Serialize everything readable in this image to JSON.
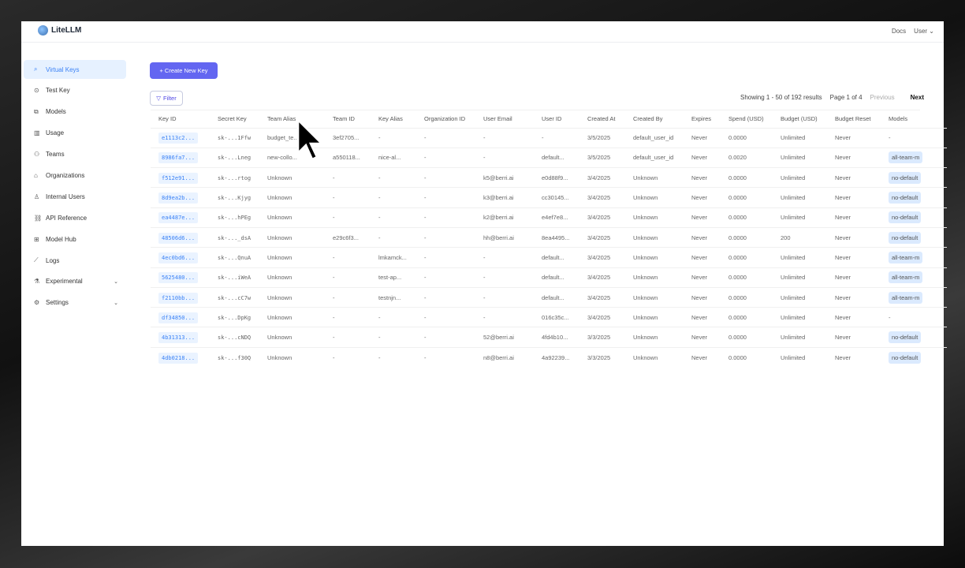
{
  "app": {
    "title": "LiteLLM",
    "docs": "Docs",
    "user": "User"
  },
  "sidebar": {
    "items": [
      {
        "label": "Virtual Keys",
        "icon": "key-search-icon",
        "active": true
      },
      {
        "label": "Test Key",
        "icon": "play-circle-icon"
      },
      {
        "label": "Models",
        "icon": "models-icon"
      },
      {
        "label": "Usage",
        "icon": "bar-chart-icon"
      },
      {
        "label": "Teams",
        "icon": "team-icon"
      },
      {
        "label": "Organizations",
        "icon": "bank-icon"
      },
      {
        "label": "Internal Users",
        "icon": "user-icon"
      },
      {
        "label": "API Reference",
        "icon": "link-icon"
      },
      {
        "label": "Model Hub",
        "icon": "grid-icon"
      },
      {
        "label": "Logs",
        "icon": "line-chart-icon"
      },
      {
        "label": "Experimental",
        "icon": "flask-icon",
        "expandable": true
      },
      {
        "label": "Settings",
        "icon": "gear-icon",
        "expandable": true
      }
    ]
  },
  "toolbar": {
    "create_label": "+ Create New Key",
    "filter_label": "Filter"
  },
  "pagination": {
    "showing": "Showing 1 - 50 of 192 results",
    "page": "Page 1 of 4",
    "previous": "Previous",
    "next": "Next"
  },
  "table": {
    "columns": [
      "Key ID",
      "Secret Key",
      "Team Alias",
      "Team ID",
      "Key Alias",
      "Organization ID",
      "User Email",
      "User ID",
      "Created At",
      "Created By",
      "Expires",
      "Spend (USD)",
      "Budget (USD)",
      "Budget Reset",
      "Models"
    ],
    "rows": [
      [
        "e1113c2...",
        "sk-...1Ffw",
        "budget_te...",
        "3ef2705...",
        "-",
        "-",
        "-",
        "-",
        "3/5/2025",
        "default_user_id",
        "Never",
        "0.0000",
        "Unlimited",
        "Never",
        "-"
      ],
      [
        "8986fa7...",
        "sk-...Lneg",
        "new-collo...",
        "a550118...",
        "nice-al...",
        "-",
        "-",
        "default...",
        "3/5/2025",
        "default_user_id",
        "Never",
        "0.0020",
        "Unlimited",
        "Never",
        "all-team-m"
      ],
      [
        "f512e91...",
        "sk-...rtog",
        "Unknown",
        "-",
        "-",
        "-",
        "k5@berri.ai",
        "e0d88f9...",
        "3/4/2025",
        "Unknown",
        "Never",
        "0.0000",
        "Unlimited",
        "Never",
        "no-default"
      ],
      [
        "8d9ea2b...",
        "sk-...Kjyg",
        "Unknown",
        "-",
        "-",
        "-",
        "k3@berri.ai",
        "cc30145...",
        "3/4/2025",
        "Unknown",
        "Never",
        "0.0000",
        "Unlimited",
        "Never",
        "no-default"
      ],
      [
        "ea4487e...",
        "sk-...hPEg",
        "Unknown",
        "-",
        "-",
        "-",
        "k2@berri.ai",
        "e4ef7e8...",
        "3/4/2025",
        "Unknown",
        "Never",
        "0.0000",
        "Unlimited",
        "Never",
        "no-default"
      ],
      [
        "48506d6...",
        "sk-..._dsA",
        "Unknown",
        "e29c6f3...",
        "-",
        "-",
        "hh@berri.ai",
        "8ea4495...",
        "3/4/2025",
        "Unknown",
        "Never",
        "0.0000",
        "200",
        "Never",
        "no-default"
      ],
      [
        "4ec0bd6...",
        "sk-...QnuA",
        "Unknown",
        "-",
        "lmkamck...",
        "-",
        "-",
        "default...",
        "3/4/2025",
        "Unknown",
        "Never",
        "0.0000",
        "Unlimited",
        "Never",
        "all-team-m"
      ],
      [
        "5625480...",
        "sk-...iWeA",
        "Unknown",
        "-",
        "test-ap...",
        "-",
        "-",
        "default...",
        "3/4/2025",
        "Unknown",
        "Never",
        "0.0000",
        "Unlimited",
        "Never",
        "all-team-m"
      ],
      [
        "f2110bb...",
        "sk-...cC7w",
        "Unknown",
        "-",
        "testnjn...",
        "-",
        "-",
        "default...",
        "3/4/2025",
        "Unknown",
        "Never",
        "0.0000",
        "Unlimited",
        "Never",
        "all-team-m"
      ],
      [
        "df34850...",
        "sk-...DpKg",
        "Unknown",
        "-",
        "-",
        "-",
        "-",
        "016c35c...",
        "3/4/2025",
        "Unknown",
        "Never",
        "0.0000",
        "Unlimited",
        "Never",
        "-"
      ],
      [
        "4b31313...",
        "sk-...cNDQ",
        "Unknown",
        "-",
        "-",
        "-",
        "52@berri.ai",
        "4fd4b10...",
        "3/3/2025",
        "Unknown",
        "Never",
        "0.0000",
        "Unlimited",
        "Never",
        "no-default"
      ],
      [
        "4db0218...",
        "sk-...f30Q",
        "Unknown",
        "-",
        "-",
        "-",
        "n8@berri.ai",
        "4a92239...",
        "3/3/2025",
        "Unknown",
        "Never",
        "0.0000",
        "Unlimited",
        "Never",
        "no-default"
      ]
    ]
  },
  "colors": {
    "accent": "#6366f1",
    "active_bg": "#e6f1ff",
    "key_blue": "#3b82f6"
  }
}
